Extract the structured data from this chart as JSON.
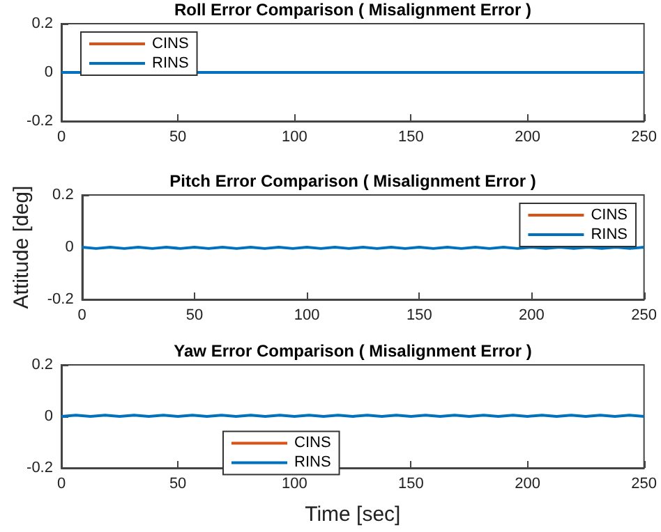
{
  "chart_data": [
    {
      "type": "line",
      "title": "Roll Error Comparison ( Misalignment Error )",
      "x": [
        0,
        250
      ],
      "xlim": [
        0,
        250
      ],
      "xticks": [
        0,
        50,
        100,
        150,
        200,
        250
      ],
      "ylim": [
        -0.2,
        0.2
      ],
      "yticks": [
        -0.2,
        0,
        0.2
      ],
      "legend": "top left",
      "grid": false,
      "marker": "none",
      "line_style": "solid",
      "series": [
        {
          "name": "CINS",
          "color": "#d95319",
          "values": [
            null,
            null
          ]
        },
        {
          "name": "RINS",
          "color": "#0072bd",
          "values": [
            0,
            0
          ]
        }
      ]
    },
    {
      "type": "line",
      "title": "Pitch Error Comparison ( Misalignment Error )",
      "ylabel": "Attitude [deg]",
      "x": [
        0,
        6.25,
        12.5,
        18.75,
        25,
        31.25,
        37.5,
        43.75,
        50,
        56.25,
        62.5,
        68.75,
        75,
        81.25,
        87.5,
        93.75,
        100,
        106.25,
        112.5,
        118.75,
        125,
        131.25,
        137.5,
        143.75,
        150,
        156.25,
        162.5,
        168.75,
        175,
        181.25,
        187.5,
        193.75,
        200,
        206.25,
        212.5,
        218.75,
        225,
        231.25,
        237.5,
        243.75,
        250
      ],
      "xlim": [
        0,
        250
      ],
      "xticks": [
        0,
        50,
        100,
        150,
        200,
        250
      ],
      "ylim": [
        -0.2,
        0.2
      ],
      "yticks": [
        -0.2,
        0,
        0.2
      ],
      "legend": "top right",
      "grid": false,
      "marker": "none",
      "line_style": "solid",
      "series": [
        {
          "name": "CINS",
          "color": "#d95319",
          "values": [
            null,
            null,
            null,
            null,
            null,
            null,
            null,
            null,
            null,
            null,
            null,
            null,
            null,
            null,
            null,
            null,
            null,
            null,
            null,
            null,
            null,
            null,
            null,
            null,
            null,
            null,
            null,
            null,
            null,
            null,
            null,
            null,
            null,
            null,
            null,
            null,
            null,
            null,
            null,
            null,
            null
          ]
        },
        {
          "name": "RINS",
          "color": "#0072bd",
          "values": [
            0,
            -0.005,
            0,
            -0.005,
            0,
            -0.005,
            0,
            -0.005,
            0,
            -0.005,
            0,
            -0.005,
            0,
            -0.005,
            0,
            -0.005,
            0,
            -0.005,
            0,
            -0.005,
            0,
            -0.005,
            0,
            -0.005,
            0,
            -0.005,
            0,
            -0.005,
            0,
            -0.005,
            0,
            -0.005,
            0,
            -0.005,
            0,
            -0.005,
            0,
            -0.005,
            0,
            -0.005,
            0
          ]
        }
      ]
    },
    {
      "type": "line",
      "title": "Yaw Error Comparison ( Misalignment Error )",
      "xlabel": "Time [sec]",
      "x": [
        0,
        6.25,
        12.5,
        18.75,
        25,
        31.25,
        37.5,
        43.75,
        50,
        56.25,
        62.5,
        68.75,
        75,
        81.25,
        87.5,
        93.75,
        100,
        106.25,
        112.5,
        118.75,
        125,
        131.25,
        137.5,
        143.75,
        150,
        156.25,
        162.5,
        168.75,
        175,
        181.25,
        187.5,
        193.75,
        200,
        206.25,
        212.5,
        218.75,
        225,
        231.25,
        237.5,
        243.75,
        250
      ],
      "xlim": [
        0,
        250
      ],
      "xticks": [
        0,
        50,
        100,
        150,
        200,
        250
      ],
      "ylim": [
        -0.2,
        0.2
      ],
      "yticks": [
        -0.2,
        0,
        0.2
      ],
      "legend": "bottom left",
      "grid": false,
      "marker": "none",
      "line_style": "solid",
      "series": [
        {
          "name": "CINS",
          "color": "#d95319",
          "values": [
            null,
            null,
            null,
            null,
            null,
            null,
            null,
            null,
            null,
            null,
            null,
            null,
            null,
            null,
            null,
            null,
            null,
            null,
            null,
            null,
            null,
            null,
            null,
            null,
            null,
            null,
            null,
            null,
            null,
            null,
            null,
            null,
            null,
            null,
            null,
            null,
            null,
            null,
            null,
            null,
            null
          ]
        },
        {
          "name": "RINS",
          "color": "#0072bd",
          "values": [
            0,
            0.005,
            0,
            0.005,
            0,
            0.005,
            0,
            0.005,
            0,
            0.005,
            0,
            0.005,
            0,
            0.005,
            0,
            0.005,
            0,
            0.005,
            0,
            0.005,
            0,
            0.005,
            0,
            0.005,
            0,
            0.005,
            0,
            0.005,
            0,
            0.005,
            0,
            0.005,
            0,
            0.005,
            0,
            0.005,
            0,
            0.005,
            0,
            0.005,
            0
          ]
        }
      ]
    }
  ]
}
